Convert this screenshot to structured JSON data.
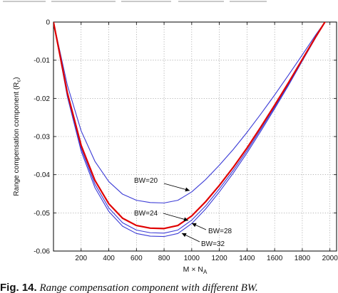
{
  "chart_data": {
    "type": "line",
    "title": "",
    "xlabel": "M × N_A",
    "xlabel_main": "M × N",
    "xlabel_sub": "A",
    "ylabel": "Range compensation component (R_c)",
    "ylabel_main": "Range compensation component (R",
    "ylabel_sub": "c",
    "ylabel_end": ")",
    "xlim": [
      0,
      2048
    ],
    "ylim": [
      -0.06,
      0
    ],
    "xticks": [
      200,
      400,
      600,
      800,
      1000,
      1200,
      1400,
      1600,
      1800,
      2000
    ],
    "xtick_labels": [
      "200",
      "400",
      "600",
      "800",
      "1000",
      "1200",
      "1400",
      "1600",
      "1800",
      "2000"
    ],
    "yticks": [
      0,
      -0.01,
      -0.02,
      -0.03,
      -0.04,
      -0.05,
      -0.06
    ],
    "ytick_labels": [
      "0",
      "-0.01",
      "-0.02",
      "-0.03",
      "-0.04",
      "-0.05",
      "-0.06"
    ],
    "grid": true,
    "series": [
      {
        "name": "BW=20",
        "color": "#3b3bd6",
        "width": 1.1,
        "x": [
          0,
          100,
          200,
          300,
          400,
          500,
          600,
          700,
          800,
          900,
          1000,
          1100,
          1200,
          1300,
          1400,
          1500,
          1600,
          1700,
          1800,
          1900,
          2000,
          2048
        ],
        "y": [
          0,
          -0.0165,
          -0.0285,
          -0.0365,
          -0.0418,
          -0.0451,
          -0.0467,
          -0.0473,
          -0.0474,
          -0.0467,
          -0.0445,
          -0.0413,
          -0.0375,
          -0.0334,
          -0.0289,
          -0.0241,
          -0.0191,
          -0.0139,
          -0.0086,
          -0.0032,
          0.0018,
          0.0042
        ]
      },
      {
        "name": "BW=24",
        "color": "#e00000",
        "width": 2.2,
        "x": [
          0,
          100,
          200,
          300,
          400,
          500,
          600,
          700,
          800,
          900,
          1000,
          1100,
          1200,
          1300,
          1400,
          1500,
          1600,
          1700,
          1800,
          1900,
          2000,
          2048
        ],
        "y": [
          0,
          -0.0185,
          -0.0323,
          -0.0415,
          -0.0476,
          -0.0514,
          -0.0533,
          -0.054,
          -0.0541,
          -0.0533,
          -0.0508,
          -0.0471,
          -0.0428,
          -0.0381,
          -0.033,
          -0.0275,
          -0.0218,
          -0.0159,
          -0.0098,
          -0.0037,
          0.0021,
          0.0048
        ]
      },
      {
        "name": "BW=28",
        "color": "#3b3bd6",
        "width": 1.1,
        "x": [
          0,
          100,
          200,
          300,
          400,
          500,
          600,
          700,
          800,
          900,
          1000,
          1100,
          1200,
          1300,
          1400,
          1500,
          1600,
          1700,
          1800,
          1900,
          2000,
          2048
        ],
        "y": [
          0,
          -0.019,
          -0.0331,
          -0.0425,
          -0.0487,
          -0.0526,
          -0.0545,
          -0.0552,
          -0.0553,
          -0.0545,
          -0.0519,
          -0.0482,
          -0.0437,
          -0.0389,
          -0.0337,
          -0.0281,
          -0.0223,
          -0.0163,
          -0.01,
          -0.0038,
          0.0021,
          0.0049
        ]
      },
      {
        "name": "BW=32",
        "color": "#3b3bd6",
        "width": 1.1,
        "x": [
          0,
          100,
          200,
          300,
          400,
          500,
          600,
          700,
          800,
          900,
          1000,
          1100,
          1200,
          1300,
          1400,
          1500,
          1600,
          1700,
          1800,
          1900,
          2000,
          2048
        ],
        "y": [
          0,
          -0.0195,
          -0.0338,
          -0.0434,
          -0.0496,
          -0.0535,
          -0.0554,
          -0.0561,
          -0.0562,
          -0.0554,
          -0.0528,
          -0.049,
          -0.0445,
          -0.0396,
          -0.0343,
          -0.0286,
          -0.0227,
          -0.0166,
          -0.0102,
          -0.0039,
          0.0021,
          0.0049
        ]
      }
    ],
    "annotations": [
      {
        "text": "BW=20",
        "series": "BW=20"
      },
      {
        "text": "BW=24",
        "series": "BW=24"
      },
      {
        "text": "BW=28",
        "series": "BW=28"
      },
      {
        "text": "BW=32",
        "series": "BW=32"
      }
    ]
  },
  "caption": {
    "label": "Fig. 14.",
    "text": "Range compensation component with different BW."
  }
}
